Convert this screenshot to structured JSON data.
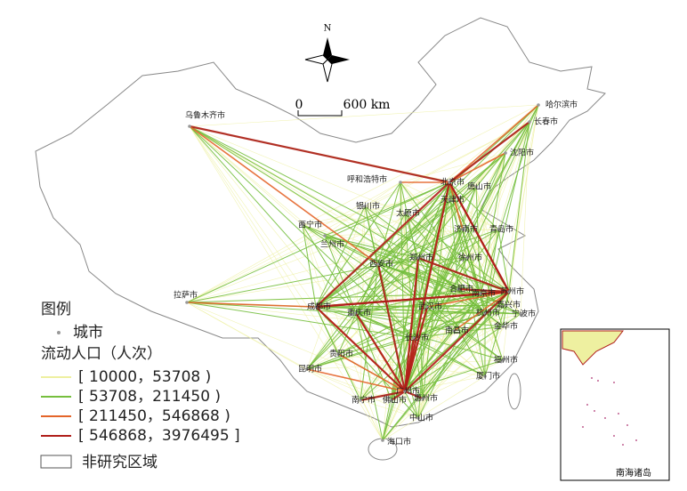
{
  "north": "N",
  "scale": {
    "zero": "0",
    "length": "600 km"
  },
  "cities": [
    "哈尔滨市",
    "长春市",
    "沈阳市",
    "乌鲁木齐市",
    "呼和浩特市",
    "北京市",
    "唐山市",
    "天津市",
    "银川市",
    "太原市",
    "济南市",
    "青岛市",
    "西宁市",
    "兰州市",
    "西安市",
    "郑州市",
    "徐州市",
    "拉萨市",
    "成都市",
    "重庆市",
    "武汉市",
    "合肥市",
    "南京市",
    "苏州市",
    "嘉兴市",
    "杭州市",
    "宁波市",
    "金华市",
    "南昌市",
    "长沙市",
    "贵阳市",
    "昆明市",
    "福州市",
    "厦门市",
    "南宁市",
    "佛山市",
    "广州市",
    "惠州市",
    "中山市",
    "海口市"
  ],
  "legend": {
    "title": "图例",
    "city": "城市",
    "flow_title": "流动人口（人次）",
    "classes": [
      {
        "label": "[ 10000，53708 )",
        "color": "#eef0a0"
      },
      {
        "label": "[ 53708，211450 )",
        "color": "#76bf3e"
      },
      {
        "label": "[ 211450，546868 )",
        "color": "#e4652a"
      },
      {
        "label": "[ 546868，3976495 ]",
        "color": "#b01e1a"
      }
    ],
    "non_study": "非研究区域"
  },
  "inset": {
    "label": "南海诸岛"
  }
}
